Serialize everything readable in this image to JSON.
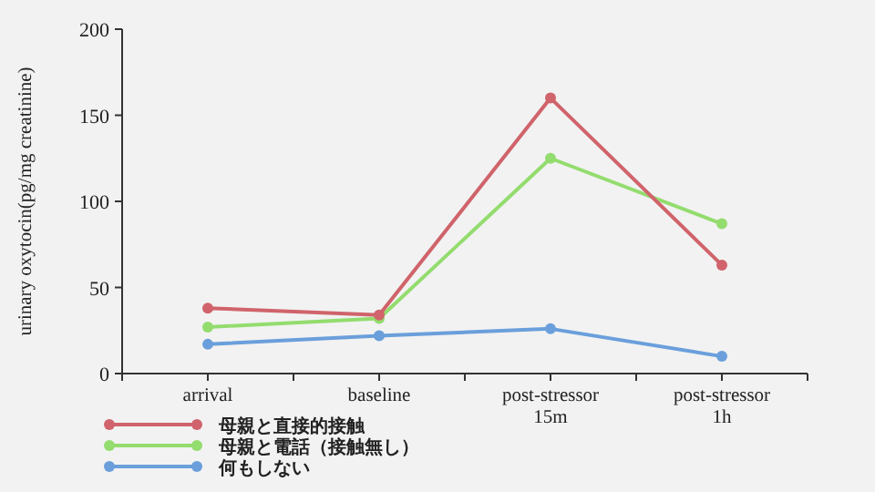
{
  "chart_data": {
    "type": "line",
    "ylabel": "urinary oxytocin(pg/mg creatinine)",
    "categories": [
      "arrival",
      "baseline",
      "post-stressor\n15m",
      "post-stressor\n1h"
    ],
    "series": [
      {
        "name": "母親と直接的接触",
        "color": "#d0636b",
        "values": [
          38,
          34,
          160,
          63
        ]
      },
      {
        "name": "母親と電話（接触無し）",
        "color": "#93dc6e",
        "values": [
          27,
          32,
          125,
          87
        ]
      },
      {
        "name": "何もしない",
        "color": "#6a9fdb",
        "values": [
          17,
          22,
          26,
          10
        ]
      }
    ],
    "ylim": [
      0,
      200
    ],
    "yticks": [
      0,
      50,
      100,
      150,
      200
    ],
    "grid": false,
    "legend": "bottom left",
    "marker": "circle",
    "line_style": "solid"
  }
}
